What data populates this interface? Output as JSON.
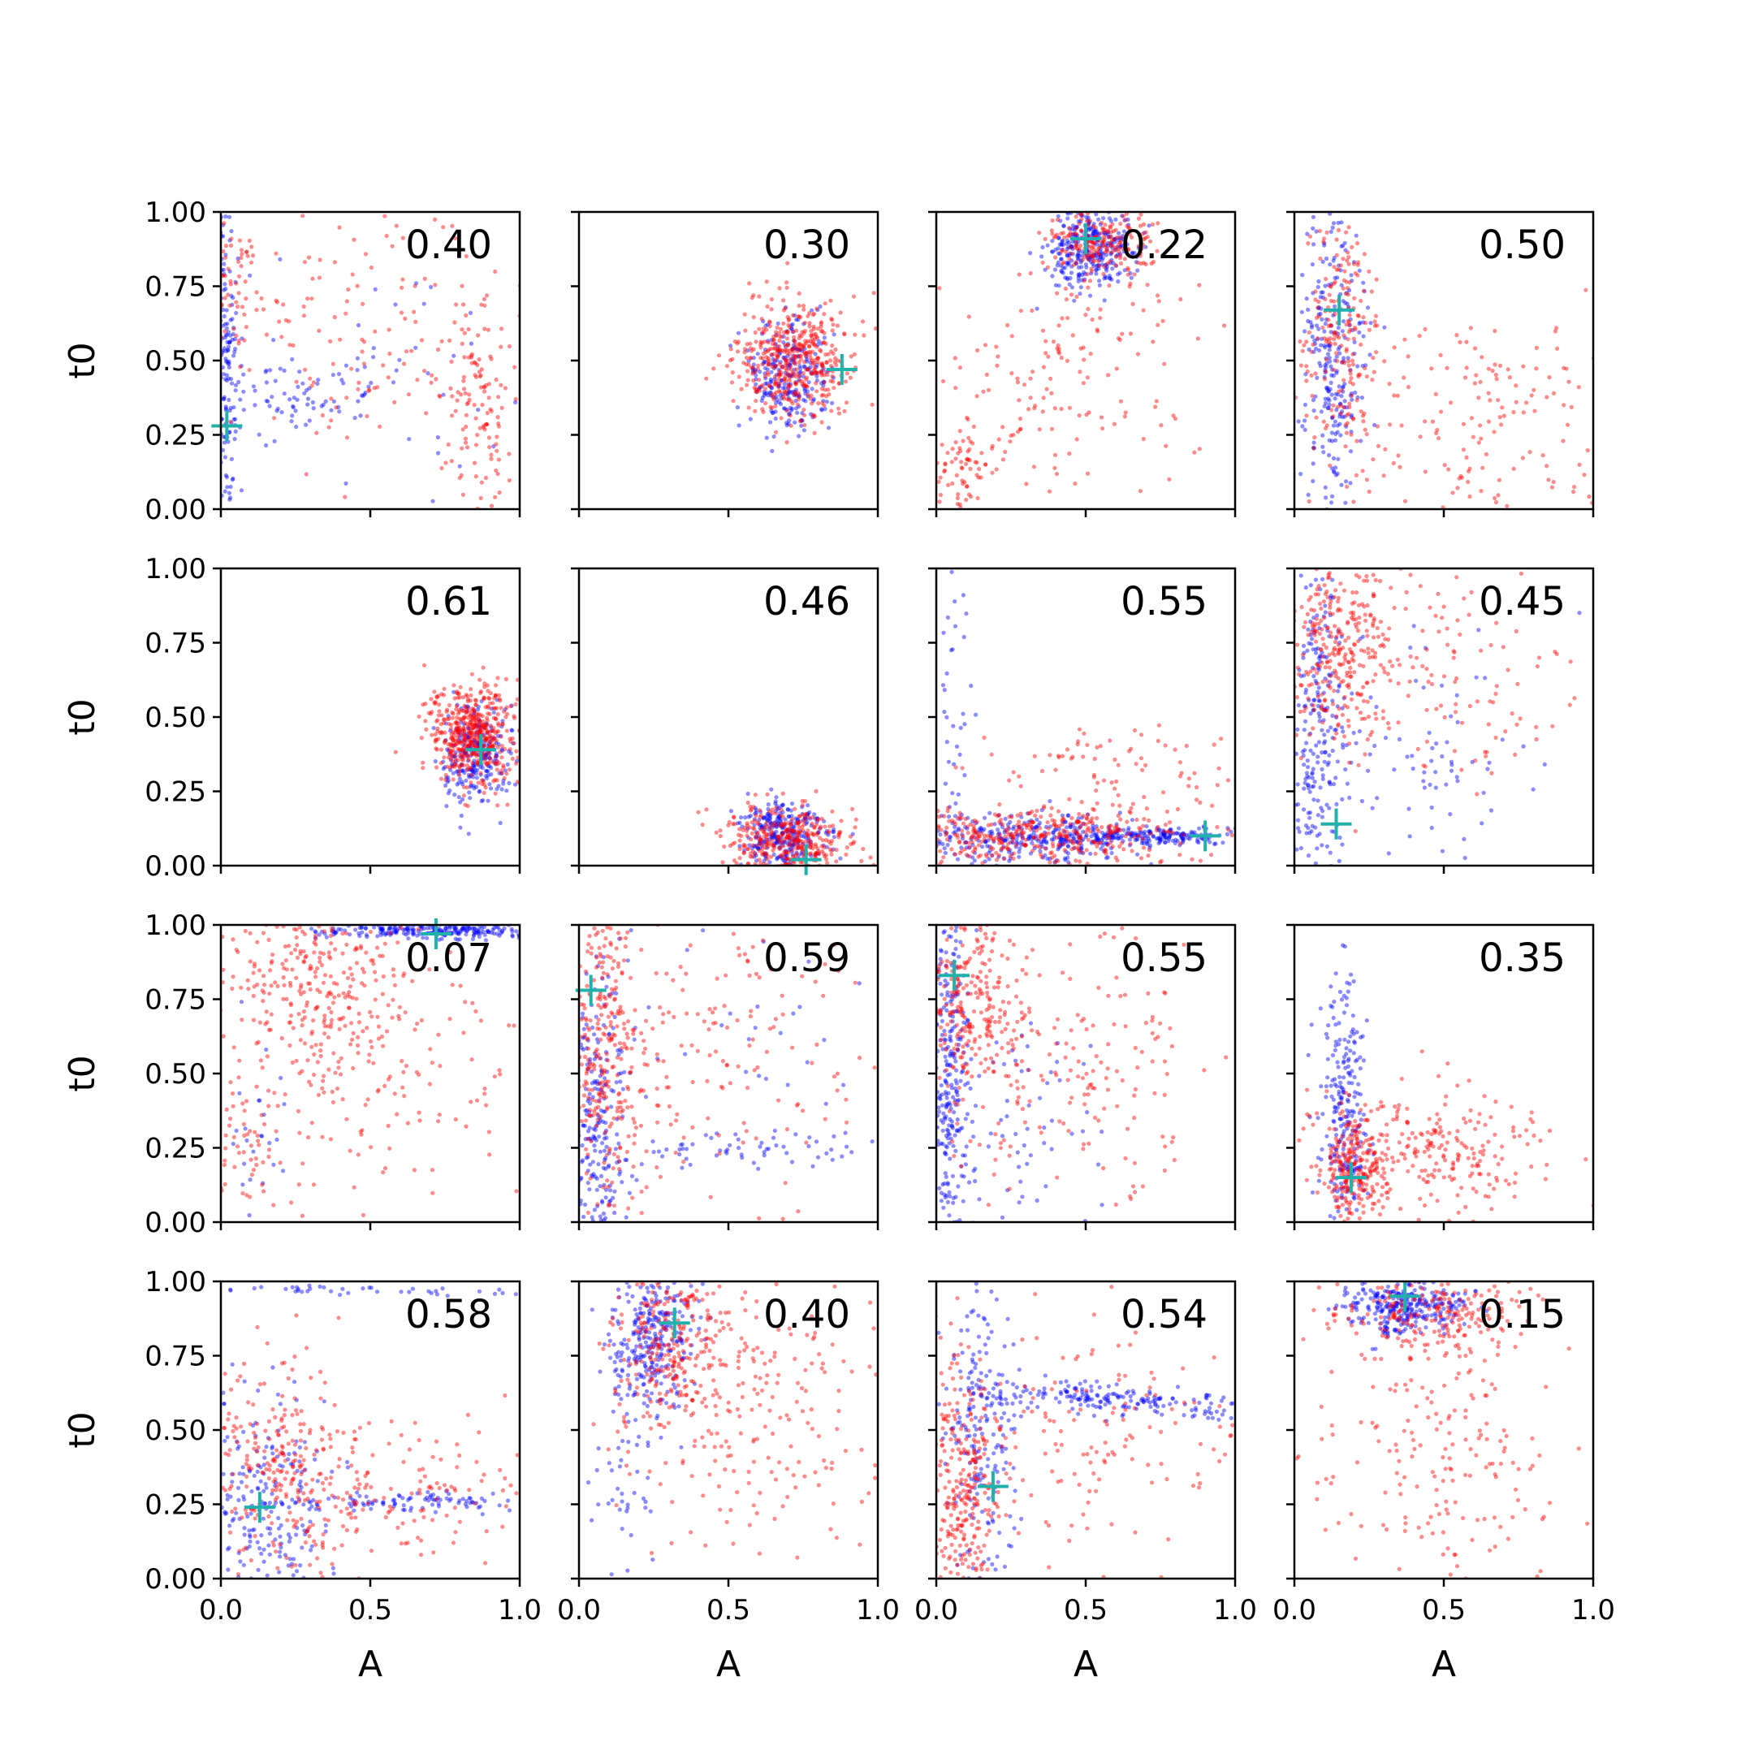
{
  "figure": {
    "type": "scatter-grid",
    "rows": 4,
    "cols": 4,
    "xlabel": "A",
    "ylabel": "t0",
    "xlim": [
      0,
      1
    ],
    "ylim": [
      0,
      1
    ],
    "x_ticks": [
      "0.0",
      "0.5",
      "1.0"
    ],
    "y_ticks": [
      "0.00",
      "0.25",
      "0.50",
      "0.75",
      "1.00"
    ],
    "colors": {
      "series_a": "#0000ff",
      "series_b": "#ff0000",
      "marker": "#20b2aa"
    }
  },
  "chart_data": [
    {
      "type": "scatter",
      "value": "0.40",
      "marker": [
        0.02,
        0.28
      ],
      "clusters": {
        "blue": [
          {
            "n": 160,
            "cx": 0.02,
            "cy": 0.5,
            "sx": 0.02,
            "sy": 0.28,
            "rot": 0
          },
          {
            "n": 70,
            "cx": 0.3,
            "cy": 0.4,
            "sx": 0.15,
            "sy": 0.06,
            "rot": 0
          },
          {
            "n": 45,
            "cx": 0.55,
            "cy": 0.5,
            "sx": 0.3,
            "sy": 0.3,
            "rot": 0
          }
        ],
        "red": [
          {
            "n": 150,
            "cx": 0.5,
            "cy": 0.6,
            "sx": 0.28,
            "sy": 0.25,
            "rot": 0
          },
          {
            "n": 120,
            "cx": 0.85,
            "cy": 0.35,
            "sx": 0.06,
            "sy": 0.18,
            "rot": 0
          },
          {
            "n": 50,
            "cx": 0.05,
            "cy": 0.8,
            "sx": 0.04,
            "sy": 0.15,
            "rot": 0
          }
        ]
      }
    },
    {
      "type": "scatter",
      "value": "0.30",
      "marker": [
        0.88,
        0.47
      ],
      "clusters": {
        "blue": [
          {
            "n": 260,
            "cx": 0.7,
            "cy": 0.45,
            "sx": 0.07,
            "sy": 0.09,
            "rot": 0
          }
        ],
        "red": [
          {
            "n": 460,
            "cx": 0.72,
            "cy": 0.5,
            "sx": 0.09,
            "sy": 0.1,
            "rot": 0
          }
        ]
      }
    },
    {
      "type": "scatter",
      "value": "0.22",
      "marker": [
        0.5,
        0.91
      ],
      "clusters": {
        "blue": [
          {
            "n": 320,
            "cx": 0.52,
            "cy": 0.88,
            "sx": 0.07,
            "sy": 0.07,
            "rot": 0
          }
        ],
        "red": [
          {
            "n": 200,
            "cx": 0.55,
            "cy": 0.9,
            "sx": 0.09,
            "sy": 0.06,
            "rot": 0
          },
          {
            "n": 170,
            "cx": 0.4,
            "cy": 0.45,
            "sx": 0.25,
            "sy": 0.2,
            "rot": 0.5
          },
          {
            "n": 60,
            "cx": 0.08,
            "cy": 0.15,
            "sx": 0.05,
            "sy": 0.08,
            "rot": 0
          }
        ]
      }
    },
    {
      "type": "scatter",
      "value": "0.50",
      "marker": [
        0.15,
        0.67
      ],
      "clusters": {
        "blue": [
          {
            "n": 260,
            "cx": 0.13,
            "cy": 0.5,
            "sx": 0.05,
            "sy": 0.27,
            "rot": 0
          }
        ],
        "red": [
          {
            "n": 200,
            "cx": 0.16,
            "cy": 0.6,
            "sx": 0.06,
            "sy": 0.25,
            "rot": 0
          },
          {
            "n": 160,
            "cx": 0.6,
            "cy": 0.3,
            "sx": 0.22,
            "sy": 0.18,
            "rot": 0
          }
        ]
      }
    },
    {
      "type": "scatter",
      "value": "0.61",
      "marker": [
        0.87,
        0.39
      ],
      "clusters": {
        "blue": [
          {
            "n": 260,
            "cx": 0.85,
            "cy": 0.36,
            "sx": 0.06,
            "sy": 0.09,
            "rot": 0
          }
        ],
        "red": [
          {
            "n": 500,
            "cx": 0.84,
            "cy": 0.44,
            "sx": 0.07,
            "sy": 0.08,
            "rot": 0
          }
        ]
      }
    },
    {
      "type": "scatter",
      "value": "0.46",
      "marker": [
        0.76,
        0.02
      ],
      "clusters": {
        "blue": [
          {
            "n": 300,
            "cx": 0.68,
            "cy": 0.1,
            "sx": 0.07,
            "sy": 0.06,
            "rot": 0
          }
        ],
        "red": [
          {
            "n": 380,
            "cx": 0.7,
            "cy": 0.08,
            "sx": 0.11,
            "sy": 0.06,
            "rot": 0
          }
        ]
      }
    },
    {
      "type": "scatter",
      "value": "0.55",
      "marker": [
        0.9,
        0.1
      ],
      "clusters": {
        "blue": [
          {
            "n": 300,
            "cx": 0.3,
            "cy": 0.09,
            "sx": 0.2,
            "sy": 0.04,
            "rot": 0
          },
          {
            "n": 200,
            "cx": 0.72,
            "cy": 0.1,
            "sx": 0.16,
            "sy": 0.015,
            "rot": 0
          },
          {
            "n": 40,
            "cx": 0.05,
            "cy": 0.5,
            "sx": 0.04,
            "sy": 0.25,
            "rot": 0
          }
        ],
        "red": [
          {
            "n": 380,
            "cx": 0.35,
            "cy": 0.1,
            "sx": 0.24,
            "sy": 0.05,
            "rot": 0
          },
          {
            "n": 100,
            "cx": 0.6,
            "cy": 0.3,
            "sx": 0.25,
            "sy": 0.1,
            "rot": 0
          }
        ]
      }
    },
    {
      "type": "scatter",
      "value": "0.45",
      "marker": [
        0.14,
        0.14
      ],
      "clusters": {
        "blue": [
          {
            "n": 240,
            "cx": 0.08,
            "cy": 0.45,
            "sx": 0.05,
            "sy": 0.28,
            "rot": 0
          },
          {
            "n": 70,
            "cx": 0.45,
            "cy": 0.35,
            "sx": 0.2,
            "sy": 0.2,
            "rot": 0
          }
        ],
        "red": [
          {
            "n": 300,
            "cx": 0.15,
            "cy": 0.75,
            "sx": 0.1,
            "sy": 0.15,
            "rot": 0
          },
          {
            "n": 120,
            "cx": 0.5,
            "cy": 0.65,
            "sx": 0.2,
            "sy": 0.2,
            "rot": 0
          }
        ]
      }
    },
    {
      "type": "scatter",
      "value": "0.07",
      "marker": [
        0.72,
        0.97
      ],
      "clusters": {
        "blue": [
          {
            "n": 260,
            "cx": 0.75,
            "cy": 0.98,
            "sx": 0.2,
            "sy": 0.012,
            "rot": 0
          },
          {
            "n": 25,
            "cx": 0.12,
            "cy": 0.3,
            "sx": 0.05,
            "sy": 0.2,
            "rot": 0
          }
        ],
        "red": [
          {
            "n": 260,
            "cx": 0.3,
            "cy": 0.8,
            "sx": 0.15,
            "sy": 0.15,
            "rot": 0
          },
          {
            "n": 160,
            "cx": 0.5,
            "cy": 0.55,
            "sx": 0.25,
            "sy": 0.25,
            "rot": 0
          },
          {
            "n": 60,
            "cx": 0.1,
            "cy": 0.25,
            "sx": 0.08,
            "sy": 0.12,
            "rot": 0
          }
        ]
      }
    },
    {
      "type": "scatter",
      "value": "0.59",
      "marker": [
        0.04,
        0.78
      ],
      "clusters": {
        "blue": [
          {
            "n": 240,
            "cx": 0.06,
            "cy": 0.35,
            "sx": 0.05,
            "sy": 0.25,
            "rot": 0
          },
          {
            "n": 60,
            "cx": 0.55,
            "cy": 0.25,
            "sx": 0.22,
            "sy": 0.03,
            "rot": 0
          },
          {
            "n": 40,
            "cx": 0.5,
            "cy": 0.6,
            "sx": 0.25,
            "sy": 0.25,
            "rot": 0
          }
        ],
        "red": [
          {
            "n": 280,
            "cx": 0.08,
            "cy": 0.55,
            "sx": 0.06,
            "sy": 0.28,
            "rot": 0
          },
          {
            "n": 180,
            "cx": 0.4,
            "cy": 0.6,
            "sx": 0.25,
            "sy": 0.25,
            "rot": 0
          }
        ]
      }
    },
    {
      "type": "scatter",
      "value": "0.55",
      "marker": [
        0.06,
        0.83
      ],
      "clusters": {
        "blue": [
          {
            "n": 260,
            "cx": 0.04,
            "cy": 0.5,
            "sx": 0.03,
            "sy": 0.28,
            "rot": 0
          },
          {
            "n": 80,
            "cx": 0.25,
            "cy": 0.3,
            "sx": 0.15,
            "sy": 0.2,
            "rot": 0
          }
        ],
        "red": [
          {
            "n": 260,
            "cx": 0.12,
            "cy": 0.75,
            "sx": 0.08,
            "sy": 0.18,
            "rot": 0
          },
          {
            "n": 180,
            "cx": 0.5,
            "cy": 0.5,
            "sx": 0.25,
            "sy": 0.25,
            "rot": 0
          }
        ]
      }
    },
    {
      "type": "scatter",
      "value": "0.35",
      "marker": [
        0.19,
        0.15
      ],
      "clusters": {
        "blue": [
          {
            "n": 260,
            "cx": 0.17,
            "cy": 0.35,
            "sx": 0.04,
            "sy": 0.25,
            "rot": 0
          }
        ],
        "red": [
          {
            "n": 250,
            "cx": 0.2,
            "cy": 0.18,
            "sx": 0.06,
            "sy": 0.1,
            "rot": 0
          },
          {
            "n": 220,
            "cx": 0.5,
            "cy": 0.25,
            "sx": 0.18,
            "sy": 0.1,
            "rot": 0
          }
        ]
      }
    },
    {
      "type": "scatter",
      "value": "0.58",
      "marker": [
        0.13,
        0.24
      ],
      "clusters": {
        "blue": [
          {
            "n": 220,
            "cx": 0.15,
            "cy": 0.2,
            "sx": 0.1,
            "sy": 0.18,
            "rot": 0
          },
          {
            "n": 100,
            "cx": 0.6,
            "cy": 0.26,
            "sx": 0.2,
            "sy": 0.015,
            "rot": 0
          },
          {
            "n": 40,
            "cx": 0.5,
            "cy": 0.97,
            "sx": 0.3,
            "sy": 0.01,
            "rot": 0
          }
        ],
        "red": [
          {
            "n": 240,
            "cx": 0.2,
            "cy": 0.35,
            "sx": 0.12,
            "sy": 0.2,
            "rot": 0
          },
          {
            "n": 150,
            "cx": 0.6,
            "cy": 0.3,
            "sx": 0.25,
            "sy": 0.15,
            "rot": 0
          }
        ]
      }
    },
    {
      "type": "scatter",
      "value": "0.40",
      "marker": [
        0.32,
        0.86
      ],
      "clusters": {
        "blue": [
          {
            "n": 300,
            "cx": 0.25,
            "cy": 0.8,
            "sx": 0.07,
            "sy": 0.12,
            "rot": 0
          },
          {
            "n": 40,
            "cx": 0.15,
            "cy": 0.35,
            "sx": 0.06,
            "sy": 0.15,
            "rot": 0
          }
        ],
        "red": [
          {
            "n": 260,
            "cx": 0.3,
            "cy": 0.8,
            "sx": 0.1,
            "sy": 0.15,
            "rot": 0
          },
          {
            "n": 220,
            "cx": 0.6,
            "cy": 0.6,
            "sx": 0.22,
            "sy": 0.25,
            "rot": 0
          }
        ]
      }
    },
    {
      "type": "scatter",
      "value": "0.54",
      "marker": [
        0.19,
        0.31
      ],
      "clusters": {
        "blue": [
          {
            "n": 200,
            "cx": 0.15,
            "cy": 0.5,
            "sx": 0.06,
            "sy": 0.28,
            "rot": 0
          },
          {
            "n": 200,
            "cx": 0.6,
            "cy": 0.6,
            "sx": 0.25,
            "sy": 0.025,
            "rot": -0.08
          }
        ],
        "red": [
          {
            "n": 300,
            "cx": 0.08,
            "cy": 0.3,
            "sx": 0.06,
            "sy": 0.2,
            "rot": 0
          },
          {
            "n": 150,
            "cx": 0.5,
            "cy": 0.45,
            "sx": 0.25,
            "sy": 0.25,
            "rot": 0
          }
        ]
      }
    },
    {
      "type": "scatter",
      "value": "0.15",
      "marker": [
        0.37,
        0.95
      ],
      "clusters": {
        "blue": [
          {
            "n": 300,
            "cx": 0.38,
            "cy": 0.92,
            "sx": 0.1,
            "sy": 0.05,
            "rot": 0
          }
        ],
        "red": [
          {
            "n": 220,
            "cx": 0.45,
            "cy": 0.88,
            "sx": 0.15,
            "sy": 0.07,
            "rot": 0
          },
          {
            "n": 200,
            "cx": 0.5,
            "cy": 0.45,
            "sx": 0.25,
            "sy": 0.25,
            "rot": 0
          }
        ]
      }
    }
  ]
}
